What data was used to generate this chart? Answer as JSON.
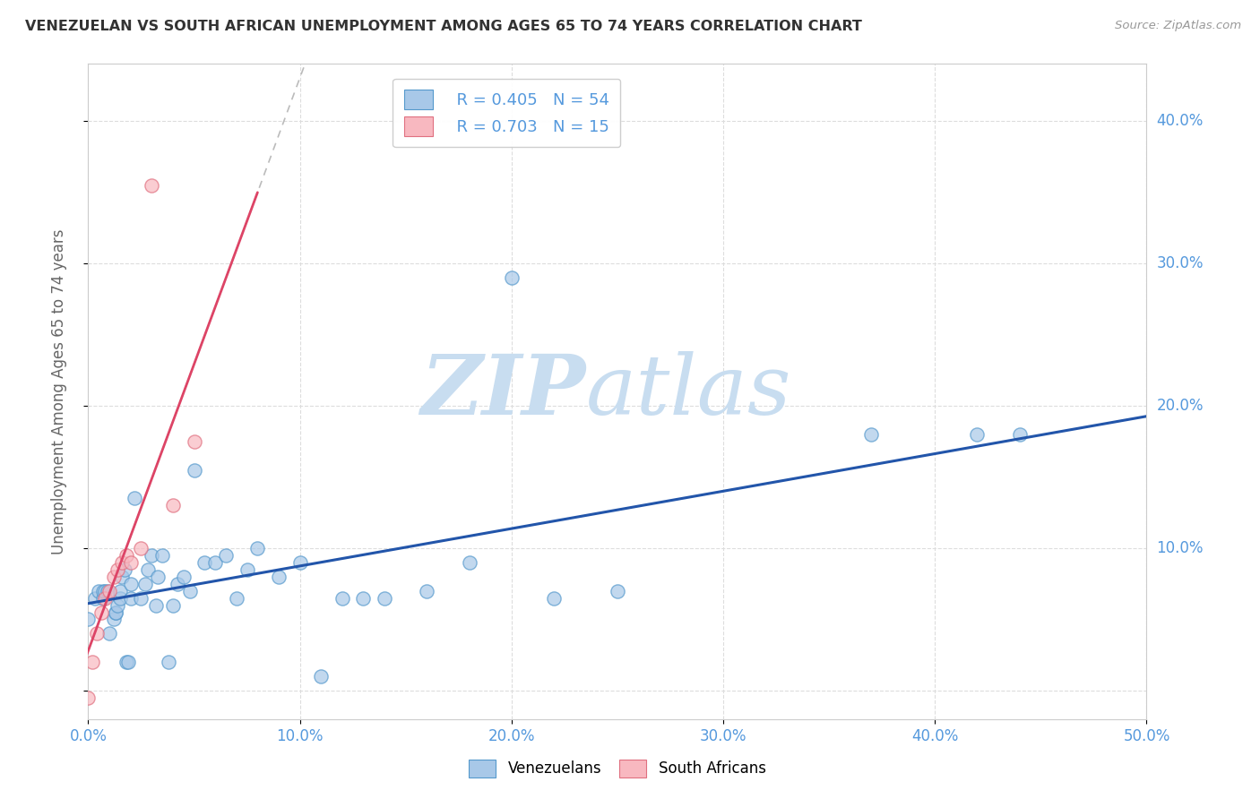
{
  "title": "VENEZUELAN VS SOUTH AFRICAN UNEMPLOYMENT AMONG AGES 65 TO 74 YEARS CORRELATION CHART",
  "source": "Source: ZipAtlas.com",
  "ylabel": "Unemployment Among Ages 65 to 74 years",
  "xlim": [
    0,
    0.5
  ],
  "ylim": [
    -0.02,
    0.44
  ],
  "xticks": [
    0.0,
    0.1,
    0.2,
    0.3,
    0.4,
    0.5
  ],
  "yticks": [
    0.0,
    0.1,
    0.2,
    0.3,
    0.4
  ],
  "xtick_labels": [
    "0.0%",
    "10.0%",
    "20.0%",
    "30.0%",
    "40.0%",
    "50.0%"
  ],
  "ytick_labels": [
    "",
    "10.0%",
    "20.0%",
    "30.0%",
    "40.0%"
  ],
  "blue_scatter_color": "#a8c8e8",
  "blue_edge_color": "#5599cc",
  "pink_scatter_color": "#f8b8c0",
  "pink_edge_color": "#e07080",
  "blue_line_color": "#2255aa",
  "pink_line_color": "#dd4466",
  "gray_dash_color": "#cccccc",
  "tick_color": "#5599dd",
  "r_blue": 0.405,
  "n_blue": 54,
  "r_pink": 0.703,
  "n_pink": 15,
  "venezuelan_x": [
    0.0,
    0.003,
    0.005,
    0.007,
    0.007,
    0.008,
    0.009,
    0.01,
    0.012,
    0.013,
    0.013,
    0.014,
    0.015,
    0.015,
    0.016,
    0.017,
    0.018,
    0.019,
    0.02,
    0.02,
    0.022,
    0.025,
    0.027,
    0.028,
    0.03,
    0.032,
    0.033,
    0.035,
    0.038,
    0.04,
    0.042,
    0.045,
    0.048,
    0.05,
    0.055,
    0.06,
    0.065,
    0.07,
    0.075,
    0.08,
    0.09,
    0.1,
    0.11,
    0.12,
    0.13,
    0.14,
    0.16,
    0.18,
    0.2,
    0.22,
    0.25,
    0.37,
    0.42,
    0.44
  ],
  "venezuelan_y": [
    0.05,
    0.065,
    0.07,
    0.065,
    0.07,
    0.07,
    0.07,
    0.04,
    0.05,
    0.055,
    0.055,
    0.06,
    0.065,
    0.07,
    0.08,
    0.085,
    0.02,
    0.02,
    0.065,
    0.075,
    0.135,
    0.065,
    0.075,
    0.085,
    0.095,
    0.06,
    0.08,
    0.095,
    0.02,
    0.06,
    0.075,
    0.08,
    0.07,
    0.155,
    0.09,
    0.09,
    0.095,
    0.065,
    0.085,
    0.1,
    0.08,
    0.09,
    0.01,
    0.065,
    0.065,
    0.065,
    0.07,
    0.09,
    0.29,
    0.065,
    0.07,
    0.18,
    0.18,
    0.18
  ],
  "south_african_x": [
    0.0,
    0.002,
    0.004,
    0.006,
    0.008,
    0.01,
    0.012,
    0.014,
    0.016,
    0.018,
    0.02,
    0.025,
    0.03,
    0.04,
    0.05
  ],
  "south_african_y": [
    -0.005,
    0.02,
    0.04,
    0.055,
    0.065,
    0.07,
    0.08,
    0.085,
    0.09,
    0.095,
    0.09,
    0.1,
    0.355,
    0.13,
    0.175
  ],
  "watermark_zip": "ZIP",
  "watermark_atlas": "atlas",
  "watermark_color_zip": "#c8ddf0",
  "watermark_color_atlas": "#c8ddf0",
  "background_color": "#ffffff",
  "grid_color": "#dddddd",
  "legend_label_blue": "Venezuelans",
  "legend_label_pink": "South Africans"
}
